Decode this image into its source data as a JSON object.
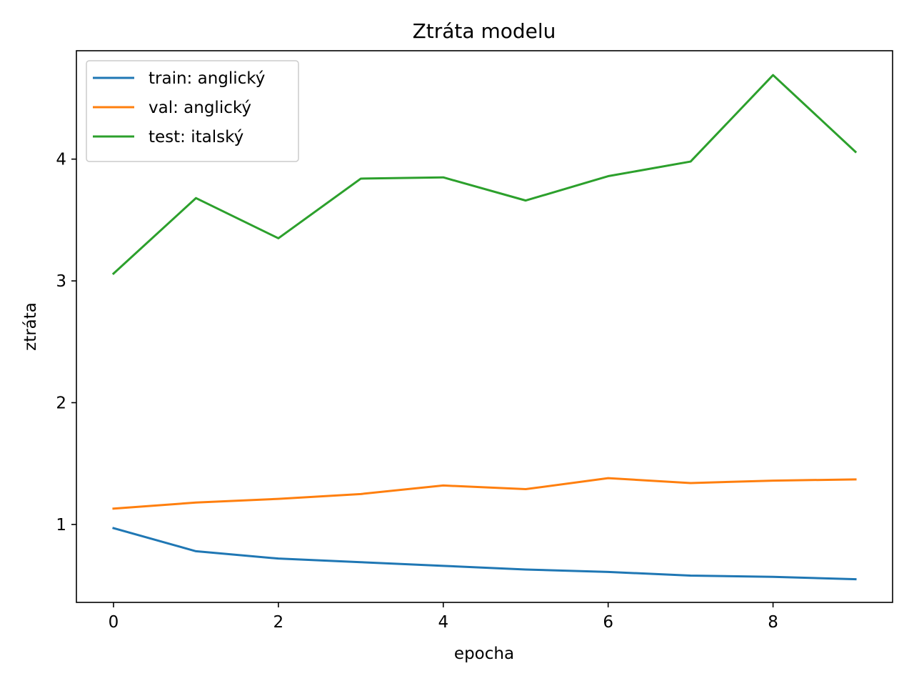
{
  "chart_data": {
    "type": "line",
    "title": "Ztráta modelu",
    "xlabel": "epocha",
    "ylabel": "ztráta",
    "x": [
      0,
      1,
      2,
      3,
      4,
      5,
      6,
      7,
      8,
      9
    ],
    "xlim": [
      -0.45,
      9.45
    ],
    "ylim": [
      0.36,
      4.89
    ],
    "xticks": [
      0,
      2,
      4,
      6,
      8
    ],
    "yticks": [
      1,
      2,
      3,
      4
    ],
    "grid": false,
    "legend_position": "top-left",
    "series": [
      {
        "name": "train: anglický",
        "color": "#1f77b4",
        "values": [
          0.97,
          0.78,
          0.72,
          0.69,
          0.66,
          0.63,
          0.61,
          0.58,
          0.57,
          0.55
        ]
      },
      {
        "name": "val: anglický",
        "color": "#ff7f0e",
        "values": [
          1.13,
          1.18,
          1.21,
          1.25,
          1.32,
          1.29,
          1.38,
          1.34,
          1.36,
          1.37
        ]
      },
      {
        "name": "test: italský",
        "color": "#2ca02c",
        "values": [
          3.06,
          3.68,
          3.35,
          3.84,
          3.85,
          3.66,
          3.86,
          3.98,
          4.69,
          4.06
        ]
      }
    ]
  }
}
